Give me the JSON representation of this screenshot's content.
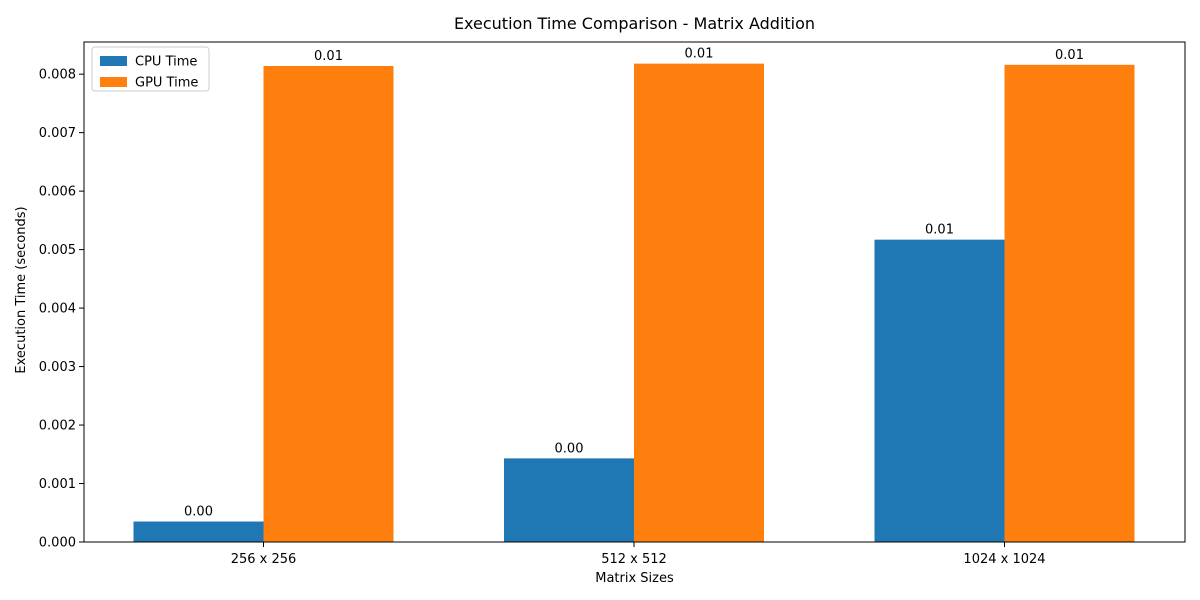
{
  "chart_data": {
    "type": "bar",
    "title": "Execution Time Comparison - Matrix Addition",
    "xlabel": "Matrix Sizes",
    "ylabel": "Execution Time (seconds)",
    "categories": [
      "256 x 256",
      "512 x 512",
      "1024 x 1024"
    ],
    "series": [
      {
        "name": "CPU Time",
        "color": "#1f77b4",
        "values": [
          0.00035,
          0.00143,
          0.00517
        ],
        "labels": [
          "0.00",
          "0.00",
          "0.01"
        ]
      },
      {
        "name": "GPU Time",
        "color": "#ff7f0e",
        "values": [
          0.00814,
          0.00818,
          0.00816
        ],
        "labels": [
          "0.01",
          "0.01",
          "0.01"
        ]
      }
    ],
    "ylim": [
      0,
      0.00855
    ],
    "yticks": [
      0.0,
      0.001,
      0.002,
      0.003,
      0.004,
      0.005,
      0.006,
      0.007,
      0.008
    ],
    "ytick_labels": [
      "0.000",
      "0.001",
      "0.002",
      "0.003",
      "0.004",
      "0.005",
      "0.006",
      "0.007",
      "0.008"
    ],
    "legend_position": "top-left",
    "grid": false
  }
}
